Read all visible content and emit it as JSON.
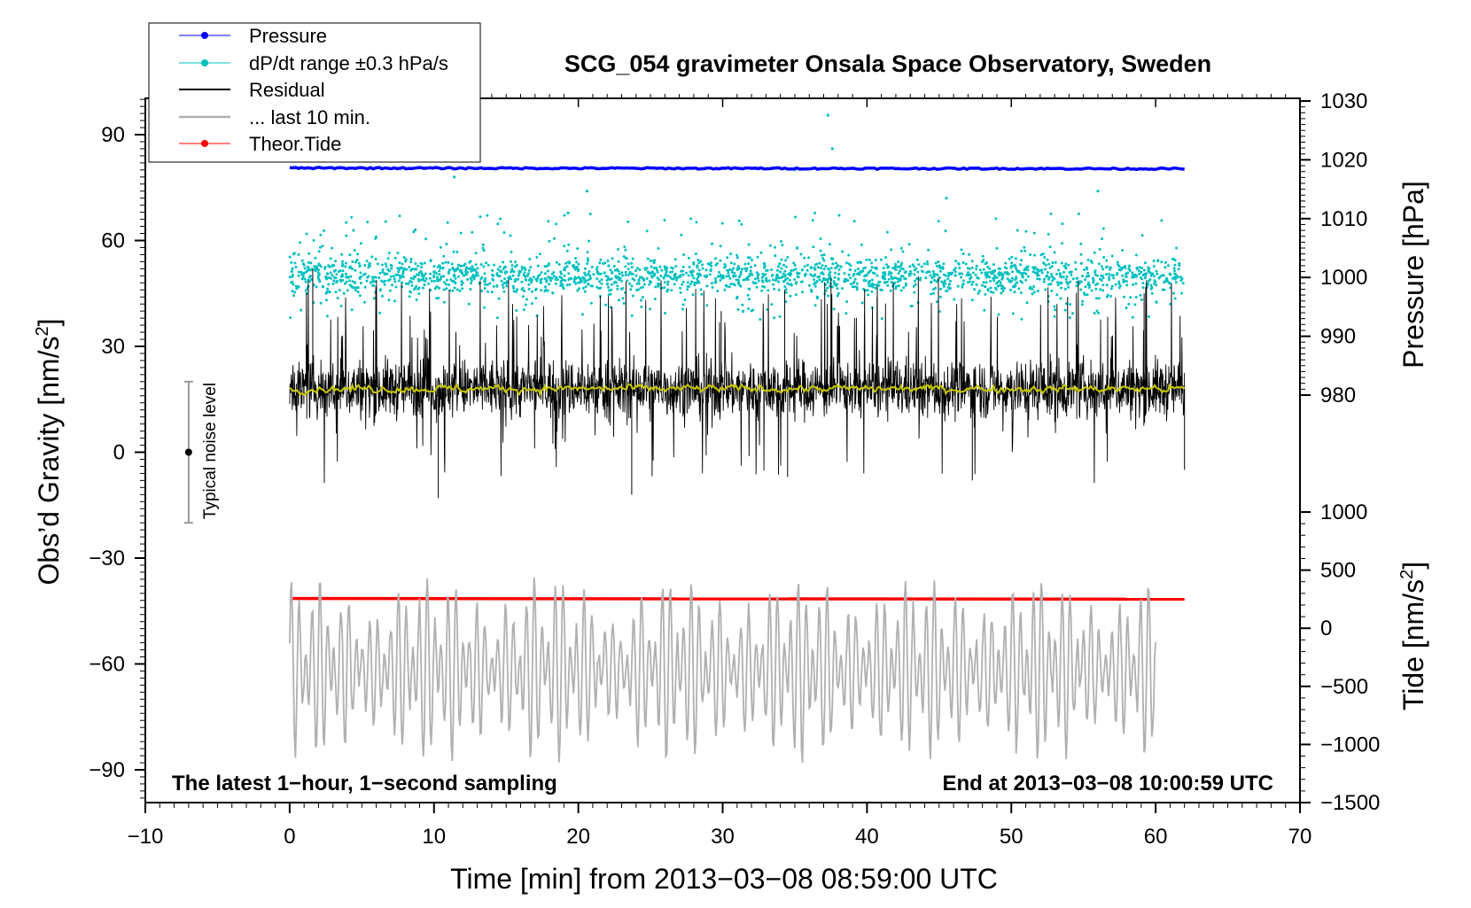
{
  "chart_data": {
    "type": "line",
    "title": "SCG_054 gravimeter Onsala Space Observatory, Sweden",
    "xlabel": "Time [min] from 2013−03−08 08:59:00 UTC",
    "ylabel_left_base": "Obs’d Gravity [nm/s",
    "ylabel_right_top": "Pressure [hPa]",
    "ylabel_right_bottom_base": "Tide [nm/s",
    "ylabel_superscript": "2",
    "ylabel_close": "]",
    "xlim": [
      -10,
      70
    ],
    "ylim_left": [
      -100,
      100
    ],
    "ylim_pressure": [
      980,
      1030
    ],
    "ylim_tide": [
      -1500,
      1000
    ],
    "x_ticks": [
      -10,
      0,
      10,
      20,
      30,
      40,
      50,
      60,
      70
    ],
    "x_tick_labels": [
      "−10",
      "0",
      "10",
      "20",
      "30",
      "40",
      "50",
      "60",
      "70"
    ],
    "y_left_ticks": [
      90,
      60,
      30,
      0,
      -30,
      -60,
      -90
    ],
    "y_left_tick_labels": [
      "90",
      "60",
      "30",
      "0",
      "−30",
      "−60",
      "−90"
    ],
    "y_pressure_ticks": [
      1030,
      1020,
      1010,
      1000,
      990,
      980
    ],
    "y_pressure_tick_labels": [
      "1030",
      "1020",
      "1010",
      "1000",
      "990",
      "980"
    ],
    "y_tide_ticks": [
      1000,
      500,
      0,
      -500,
      -1000,
      -1500
    ],
    "y_tide_tick_labels": [
      "1000",
      "500",
      "0",
      "−500",
      "−1000",
      "−1500"
    ],
    "legend": [
      {
        "label": "Pressure",
        "color": "#0000ff",
        "marker": true
      },
      {
        "label": "dP/dt range ±0.3 hPa/s",
        "color": "#00c0c0",
        "marker": true
      },
      {
        "label": "Residual",
        "color": "#000000",
        "marker": false
      },
      {
        "label": "... last 10 min.",
        "color": "#b0b0b0",
        "marker": false
      },
      {
        "label": "Theor.Tide",
        "color": "#ff0000",
        "marker": true
      }
    ],
    "series": [
      {
        "name": "Pressure",
        "axis": "pressure",
        "x_range": [
          0,
          62
        ],
        "level_hpa": 1018.6,
        "color": "#0000ff"
      },
      {
        "name": "dP/dt range ±0.3 hPa/s",
        "axis": "left",
        "x_range": [
          0,
          62
        ],
        "center_nm_s2": 50,
        "spread_nm_s2": 15,
        "color": "#00c0c0"
      },
      {
        "name": "Residual",
        "axis": "left",
        "x_range": [
          0,
          62
        ],
        "mean_nm_s2": 18,
        "min_nm_s2": -13,
        "max_nm_s2": 52,
        "color": "#000000"
      },
      {
        "name": "Residual smoothed",
        "axis": "left",
        "x_range": [
          0,
          62
        ],
        "mean_nm_s2": 18,
        "color": "#c8c800"
      },
      {
        "name": "... last 10 min.",
        "axis": "left",
        "x_range": [
          0,
          60
        ],
        "min_nm_s2": -88,
        "max_nm_s2": -35,
        "color": "#b0b0b0"
      },
      {
        "name": "Theor.Tide",
        "axis": "tide",
        "x_range": [
          0,
          62
        ],
        "level_nm_s2": 250,
        "color": "#ff0000"
      }
    ],
    "noise_level": {
      "x": -7,
      "center": 0,
      "range": [
        -20,
        20
      ],
      "label": "Typical noise level"
    },
    "annotations": {
      "bottom_left": "The latest 1−hour, 1−second sampling",
      "bottom_right": "End at 2013−03−08 10:00:59 UTC"
    }
  }
}
